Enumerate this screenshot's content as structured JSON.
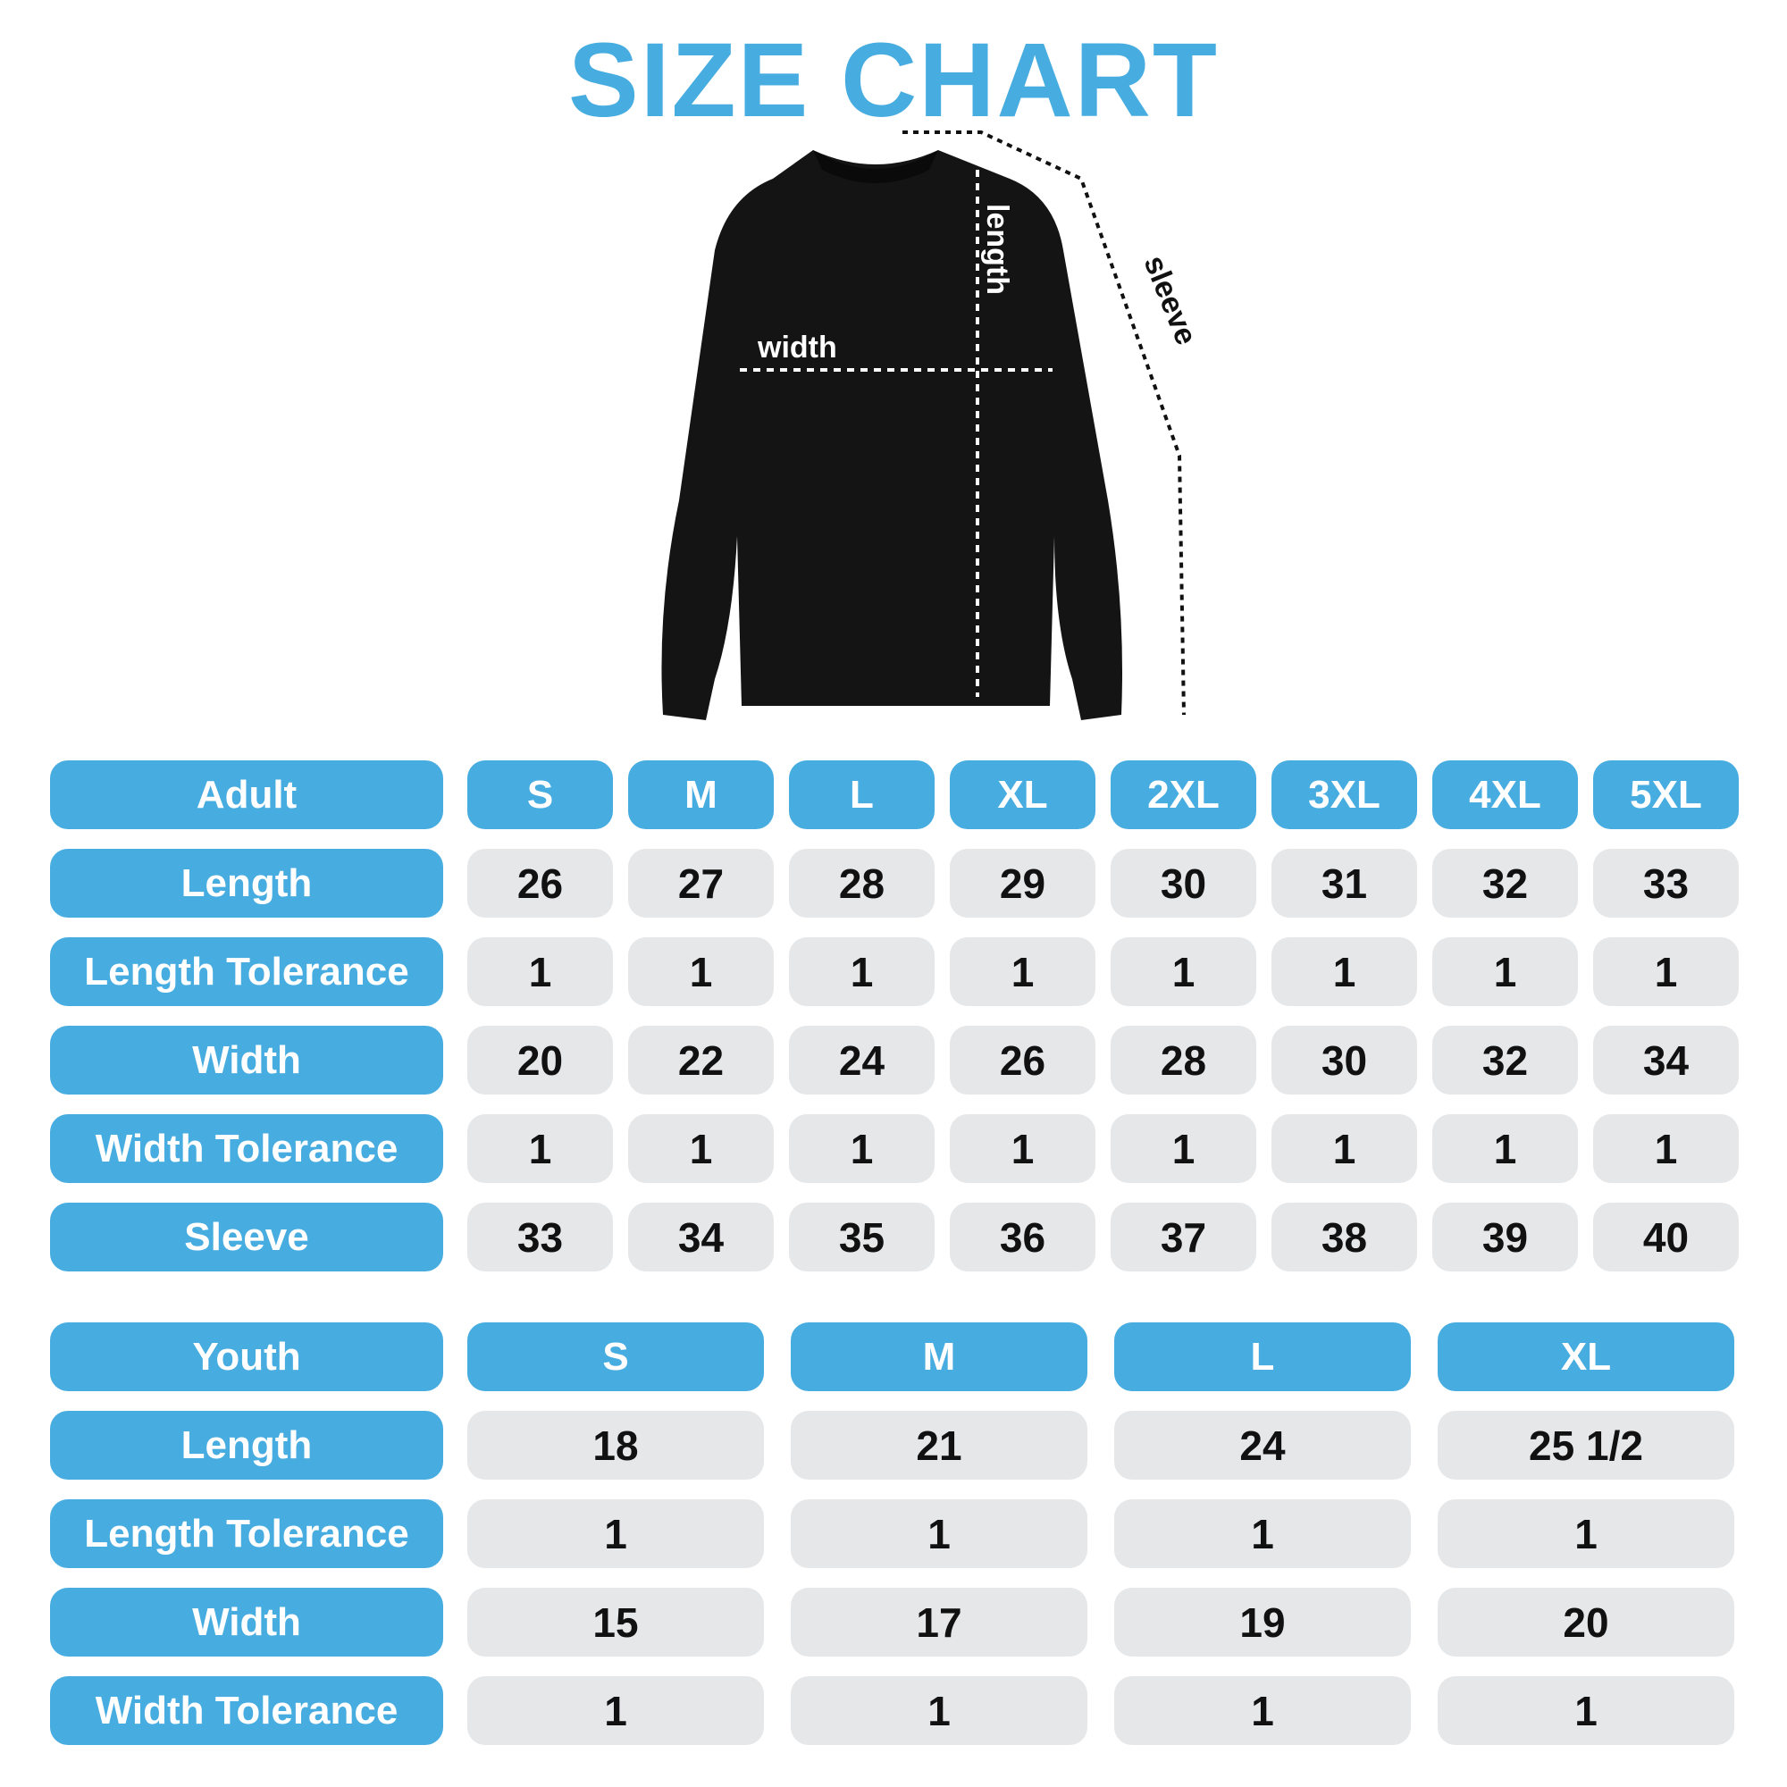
{
  "title": "SIZE CHART",
  "diagram": {
    "length_label": "length",
    "width_label": "width",
    "sleeve_label": "sleeve"
  },
  "colors": {
    "accent": "#47ace0",
    "cell": "#e6e7e9",
    "text": "#111111"
  },
  "adult": {
    "header": "Adult",
    "sizes": [
      "S",
      "M",
      "L",
      "XL",
      "2XL",
      "3XL",
      "4XL",
      "5XL"
    ],
    "rows": [
      {
        "label": "Length",
        "values": [
          "26",
          "27",
          "28",
          "29",
          "30",
          "31",
          "32",
          "33"
        ]
      },
      {
        "label": "Length Tolerance",
        "values": [
          "1",
          "1",
          "1",
          "1",
          "1",
          "1",
          "1",
          "1"
        ]
      },
      {
        "label": "Width",
        "values": [
          "20",
          "22",
          "24",
          "26",
          "28",
          "30",
          "32",
          "34"
        ]
      },
      {
        "label": "Width Tolerance",
        "values": [
          "1",
          "1",
          "1",
          "1",
          "1",
          "1",
          "1",
          "1"
        ]
      },
      {
        "label": "Sleeve",
        "values": [
          "33",
          "34",
          "35",
          "36",
          "37",
          "38",
          "39",
          "40"
        ]
      }
    ]
  },
  "youth": {
    "header": "Youth",
    "sizes": [
      "S",
      "M",
      "L",
      "XL"
    ],
    "rows": [
      {
        "label": "Length",
        "values": [
          "18",
          "21",
          "24",
          "25 1/2"
        ]
      },
      {
        "label": "Length Tolerance",
        "values": [
          "1",
          "1",
          "1",
          "1"
        ]
      },
      {
        "label": "Width",
        "values": [
          "15",
          "17",
          "19",
          "20"
        ]
      },
      {
        "label": "Width Tolerance",
        "values": [
          "1",
          "1",
          "1",
          "1"
        ]
      }
    ]
  }
}
